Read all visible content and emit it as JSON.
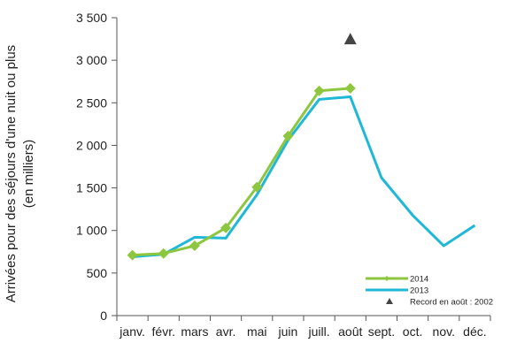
{
  "chart_data": {
    "type": "line",
    "ylabel_line1": "Arrivées pour des séjours d'une nuit ou plus",
    "ylabel_line2": "(en milliers)",
    "categories": [
      "janv.",
      "févr.",
      "mars",
      "avr.",
      "mai",
      "juin",
      "juill.",
      "août",
      "sept.",
      "oct.",
      "nov.",
      "déc."
    ],
    "ylim": [
      0,
      3500
    ],
    "yticks": [
      0,
      500,
      1000,
      1500,
      2000,
      2500,
      3000,
      3500
    ],
    "ytick_labels": [
      "0",
      "500",
      "1 000",
      "1 500",
      "2 000",
      "2 500",
      "3 000",
      "3 500"
    ],
    "grid": false,
    "legend_position": "bottom-right",
    "series": [
      {
        "name": "2014",
        "color": "#8dc63f",
        "marker": "diamond",
        "values": [
          710,
          730,
          820,
          1030,
          1510,
          2110,
          2640,
          2670,
          null,
          null,
          null,
          null
        ]
      },
      {
        "name": "2013",
        "color": "#1fb8d6",
        "marker": "none",
        "values": [
          690,
          720,
          920,
          910,
          1420,
          2060,
          2540,
          2570,
          1620,
          1180,
          820,
          1060
        ]
      }
    ],
    "annotations": [
      {
        "name": "Record en août : 2002",
        "category": "août",
        "value": 3250,
        "marker": "triangle",
        "color": "#444444"
      }
    ]
  }
}
